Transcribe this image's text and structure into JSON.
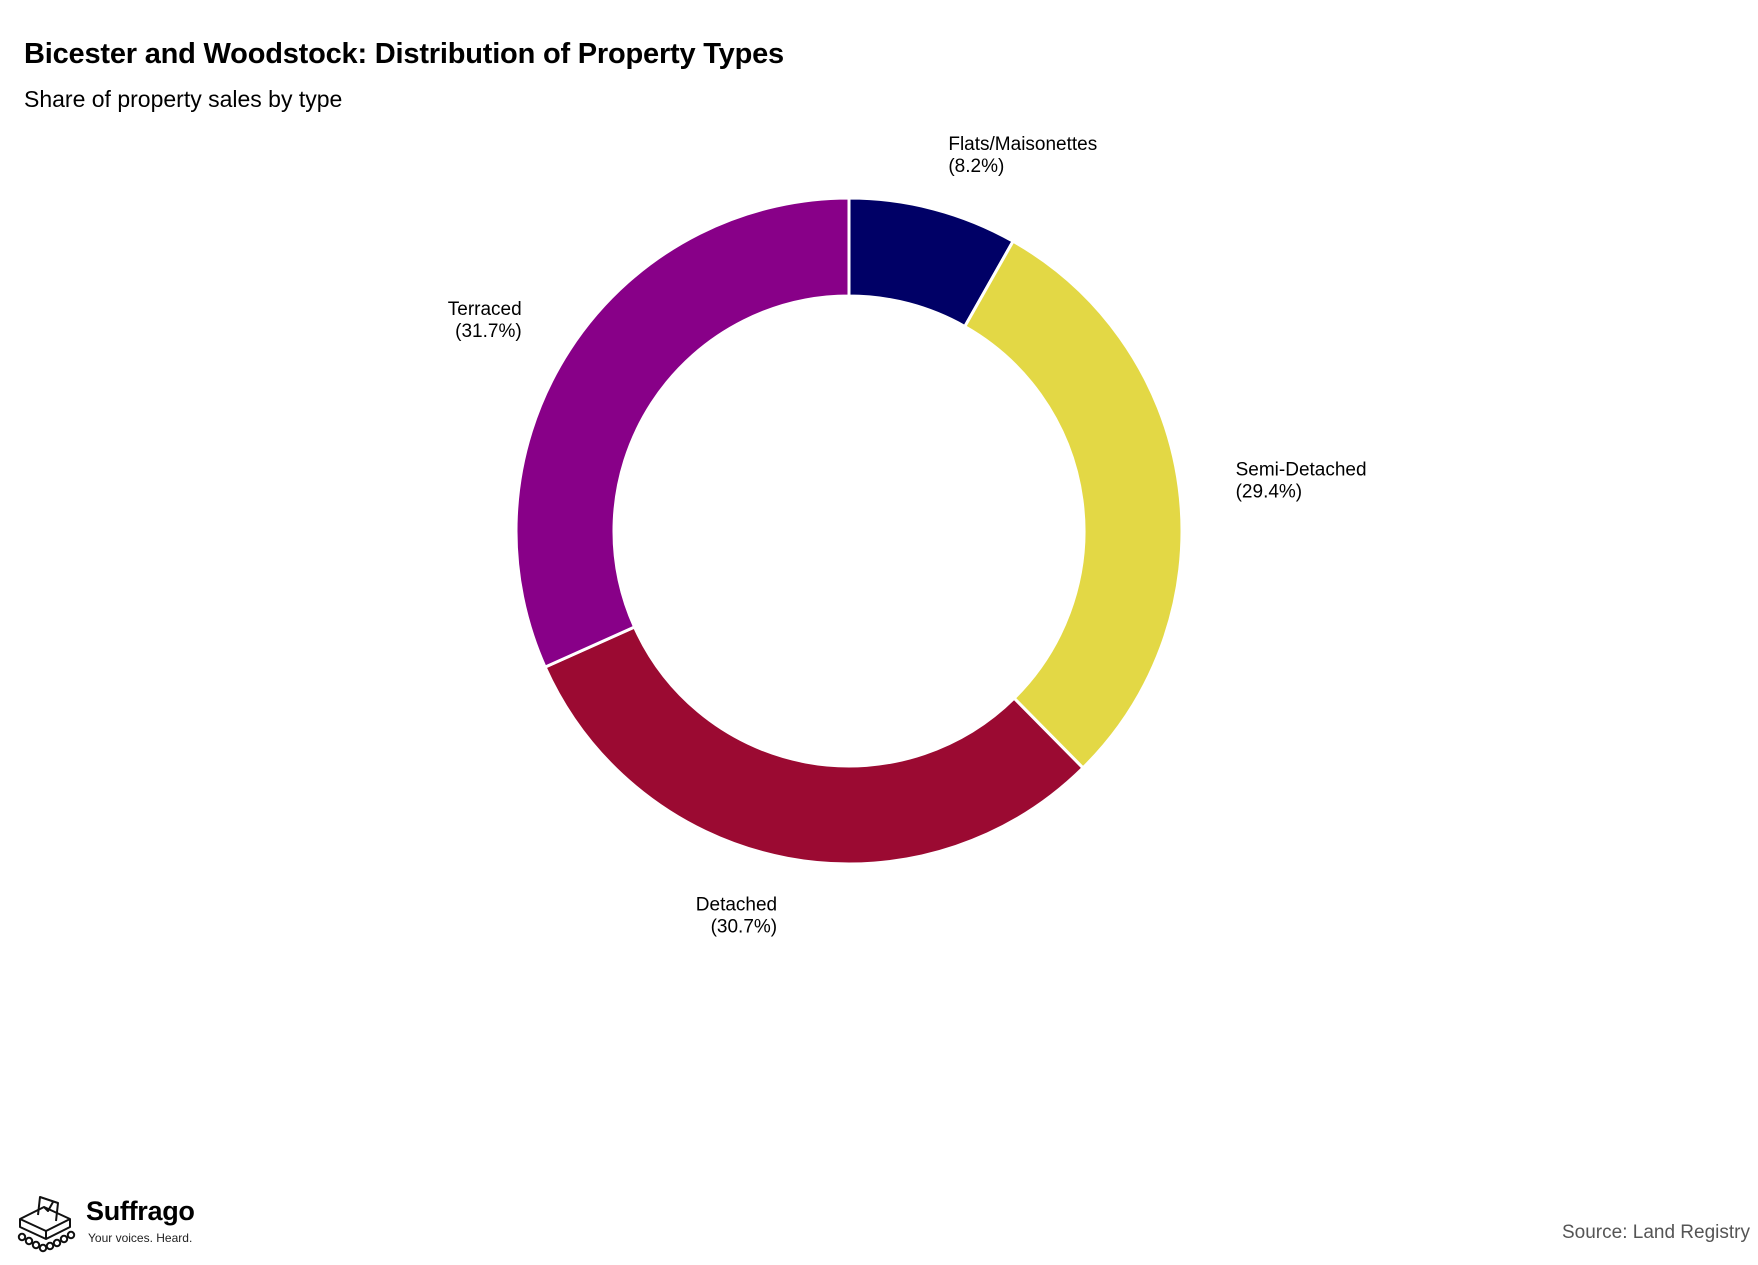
{
  "header": {
    "title": "Bicester and Woodstock: Distribution of Property Types",
    "subtitle": "Share of property sales by type"
  },
  "chart_data": {
    "type": "pie",
    "style": "donut",
    "title": "Bicester and Woodstock: Distribution of Property Types",
    "subtitle": "Share of property sales by type",
    "start_angle": "12 o'clock",
    "direction": "clockwise",
    "legend": "none",
    "slices": [
      {
        "label": "Flats/Maisonettes",
        "value": 8.2,
        "value_label": "(8.2%)",
        "color": "#000066"
      },
      {
        "label": "Semi-Detached",
        "value": 29.4,
        "value_label": "(29.4%)",
        "color": "#E3D845"
      },
      {
        "label": "Detached",
        "value": 30.7,
        "value_label": "(30.7%)",
        "color": "#9B0A32"
      },
      {
        "label": "Terraced",
        "value": 31.7,
        "value_label": "(31.7%)",
        "color": "#880088"
      }
    ]
  },
  "footer": {
    "brand_name": "Suffrago",
    "tagline": "Your voices. Heard.",
    "source": "Source: Land Registry",
    "logo_icon": "ballot-box-icon"
  }
}
